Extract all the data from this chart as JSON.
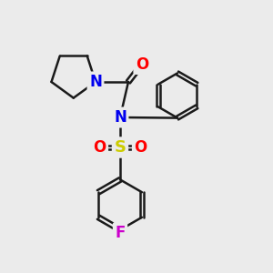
{
  "background_color": "#ebebeb",
  "bond_color": "#1a1a1a",
  "bond_width": 1.8,
  "atom_colors": {
    "N": "#0000ee",
    "O": "#ff0000",
    "S": "#cccc00",
    "F": "#cc00cc",
    "C": "#1a1a1a"
  },
  "font_size_atom": 12,
  "figsize": [
    3.0,
    3.0
  ],
  "dpi": 100,
  "xlim": [
    0,
    10
  ],
  "ylim": [
    0,
    10
  ]
}
